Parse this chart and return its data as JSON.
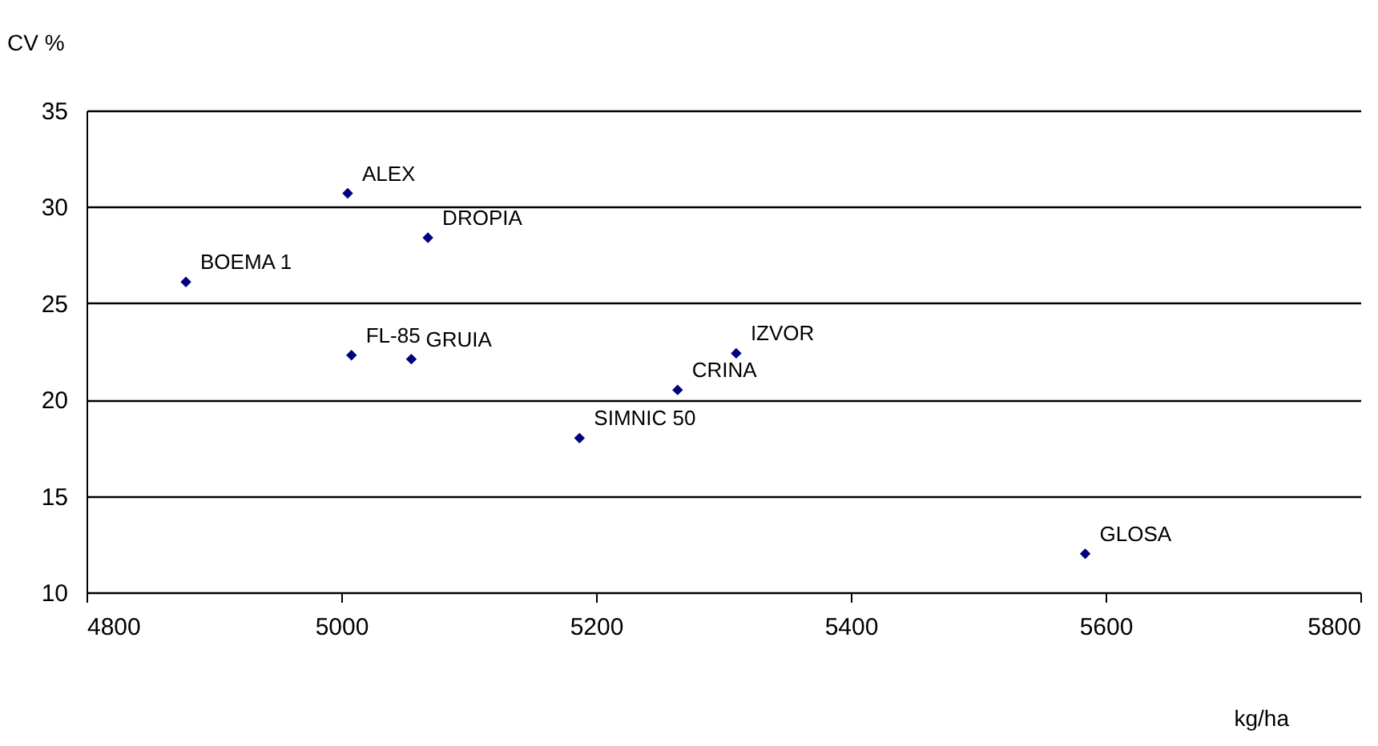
{
  "chart_data": {
    "type": "scatter",
    "xlabel": "kg/ha",
    "ylabel": "CV %",
    "series": [
      {
        "color": "#000080",
        "x": [
          5005,
          5068,
          4878,
          5008,
          5055,
          5310,
          5264,
          5187,
          5584
        ],
        "values": [
          30.7,
          28.4,
          26.1,
          22.3,
          22.1,
          22.4,
          20.5,
          18.0,
          12.0
        ]
      }
    ],
    "xlim": [
      4800,
      5800
    ],
    "xticks": [
      4800,
      5000,
      5200,
      5400,
      5600,
      5800
    ],
    "ylim": [
      10,
      35
    ],
    "yticks": [
      10,
      15,
      20,
      25,
      30,
      35
    ],
    "grid": "y",
    "legend": false,
    "marker": "diamond",
    "annotations": [
      {
        "text": "ALEX",
        "x": 5005,
        "y": 30.7
      },
      {
        "text": "DROPIA",
        "x": 5068,
        "y": 28.4
      },
      {
        "text": "BOEMA 1",
        "x": 4878,
        "y": 26.1
      },
      {
        "text": "FL-85",
        "x": 5008,
        "y": 22.3
      },
      {
        "text": "GRUIA",
        "x": 5055,
        "y": 22.1
      },
      {
        "text": "IZVOR",
        "x": 5310,
        "y": 22.4
      },
      {
        "text": "CRINA",
        "x": 5264,
        "y": 20.5
      },
      {
        "text": "SIMNIC 50",
        "x": 5187,
        "y": 18.0
      },
      {
        "text": "GLOSA",
        "x": 5584,
        "y": 12.0
      }
    ]
  }
}
